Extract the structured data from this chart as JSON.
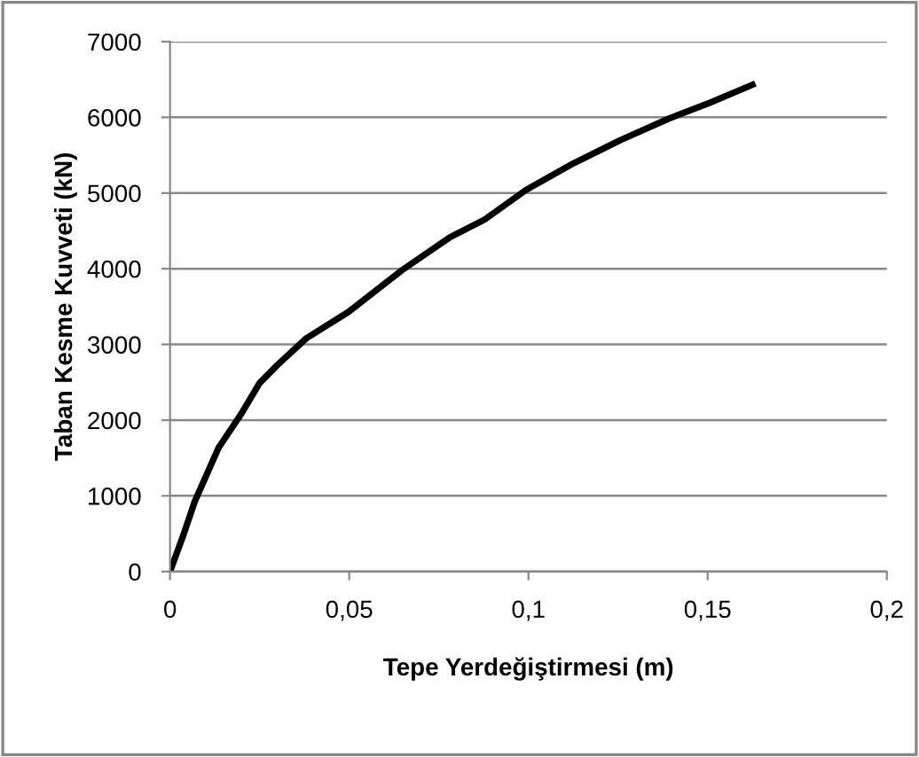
{
  "chart_data": {
    "type": "line",
    "xlabel": "Tepe Yerdeğiştirmesi (m)",
    "ylabel": "Taban Kesme Kuvveti (kN)",
    "series": [
      {
        "color": "#000000",
        "x": [
          0,
          0.0035,
          0.0069,
          0.0135,
          0.0201,
          0.025,
          0.03,
          0.038,
          0.0498,
          0.0647,
          0.0779,
          0.0878,
          0.0993,
          0.1125,
          0.1257,
          0.139,
          0.1505,
          0.1625
        ],
        "values": [
          0,
          450,
          925,
          1630,
          2100,
          2490,
          2730,
          3080,
          3430,
          3980,
          4410,
          4650,
          5040,
          5390,
          5700,
          5980,
          6190,
          6430
        ]
      }
    ],
    "xlim": [
      0,
      0.2
    ],
    "xticks": [
      0,
      {
        "value": 0.05,
        "label": "0,05"
      },
      {
        "value": 0.1,
        "label": "0,1"
      },
      {
        "value": 0.15,
        "label": "0,15"
      },
      {
        "value": 0.2,
        "label": "0,2"
      }
    ],
    "ylim": [
      0,
      7000
    ],
    "yticks": [
      0,
      1000,
      2000,
      3000,
      4000,
      5000,
      6000,
      7000
    ],
    "grid": "y",
    "legend": false,
    "marker": "none",
    "line_style": "solid"
  }
}
